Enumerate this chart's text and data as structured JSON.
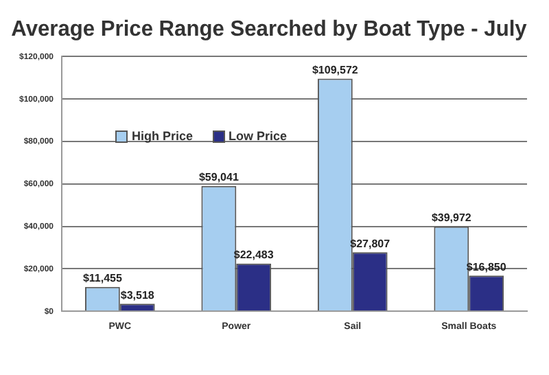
{
  "chart_data": {
    "type": "bar",
    "title": "Average Price Range Searched by Boat Type - July",
    "categories": [
      "PWC",
      "Power",
      "Sail",
      "Small Boats"
    ],
    "series": [
      {
        "name": "High Price",
        "color": "#a6cef0",
        "values": [
          11455,
          59041,
          109572,
          39972
        ],
        "value_labels": [
          "$11,455",
          "$59,041",
          "$109,572",
          "$39,972"
        ]
      },
      {
        "name": "Low Price",
        "color": "#2b2f86",
        "values": [
          3518,
          22483,
          27807,
          16850
        ],
        "value_labels": [
          "$3,518",
          "$22,483",
          "$27,807",
          "$16,850"
        ]
      }
    ],
    "ylim": [
      0,
      120000
    ],
    "yticks": [
      {
        "value": 0,
        "label": "$0"
      },
      {
        "value": 20000,
        "label": "$20,000"
      },
      {
        "value": 40000,
        "label": "$40,000"
      },
      {
        "value": 60000,
        "label": "$60,000"
      },
      {
        "value": 80000,
        "label": "$80,000"
      },
      {
        "value": 100000,
        "label": "$100,000"
      },
      {
        "value": 120000,
        "label": "$120,000"
      }
    ],
    "grid": "y",
    "legend": "top left"
  }
}
